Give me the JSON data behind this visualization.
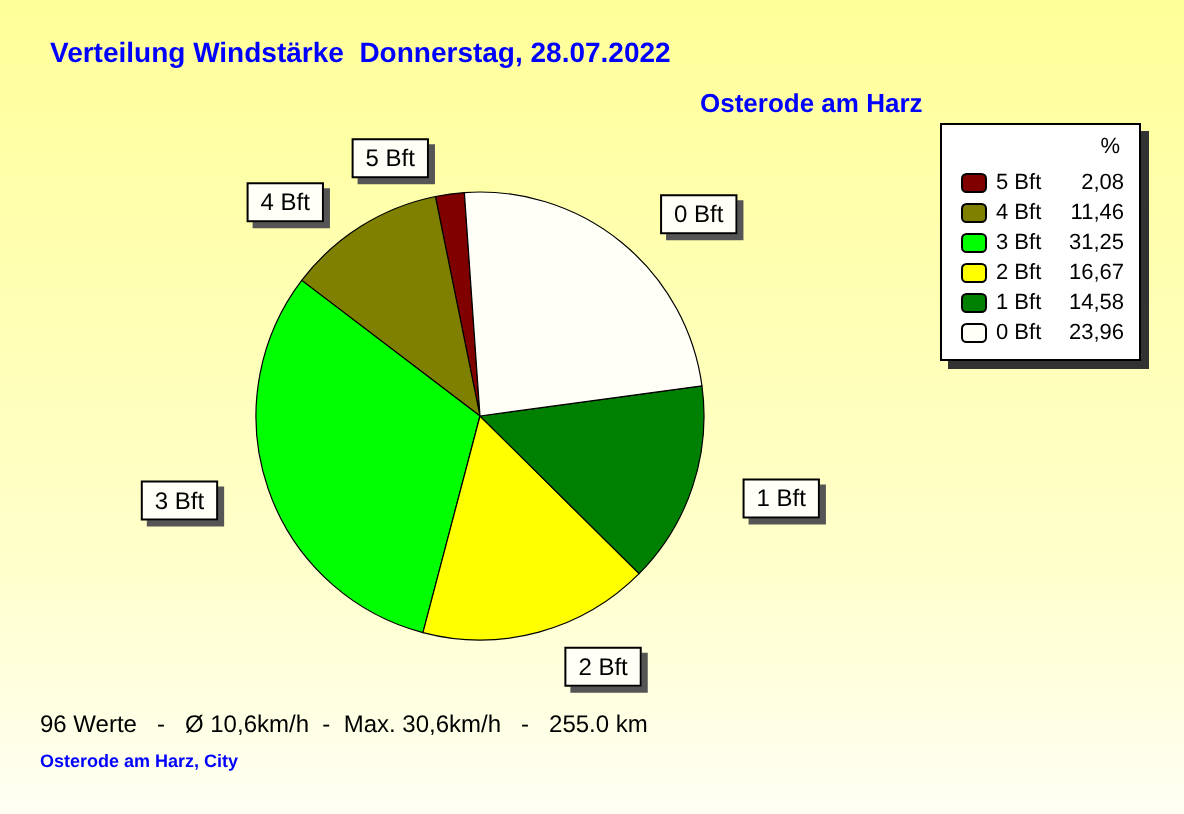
{
  "chart_data": {
    "type": "pie",
    "title": "Verteilung Windstärke  Donnerstag, 28.07.2022",
    "subtitle": "Osterode am Harz",
    "legend_title": "%",
    "categories": [
      "5 Bft",
      "4 Bft",
      "3 Bft",
      "2 Bft",
      "1 Bft",
      "0 Bft"
    ],
    "values": [
      2.08,
      11.46,
      31.25,
      16.67,
      14.58,
      23.96
    ],
    "value_labels": [
      "2,08",
      "11,46",
      "31,25",
      "16,67",
      "14,58",
      "23,96"
    ],
    "colors": [
      "#800000",
      "#808000",
      "#00ff00",
      "#ffff00",
      "#008000",
      "#fffff8"
    ],
    "legend": "top right",
    "annotations": [
      "96 Werte   -   Ø 10,6km/h  -  Max. 30,6km/h   -   255.0 km",
      "Osterode am Harz, City"
    ]
  }
}
